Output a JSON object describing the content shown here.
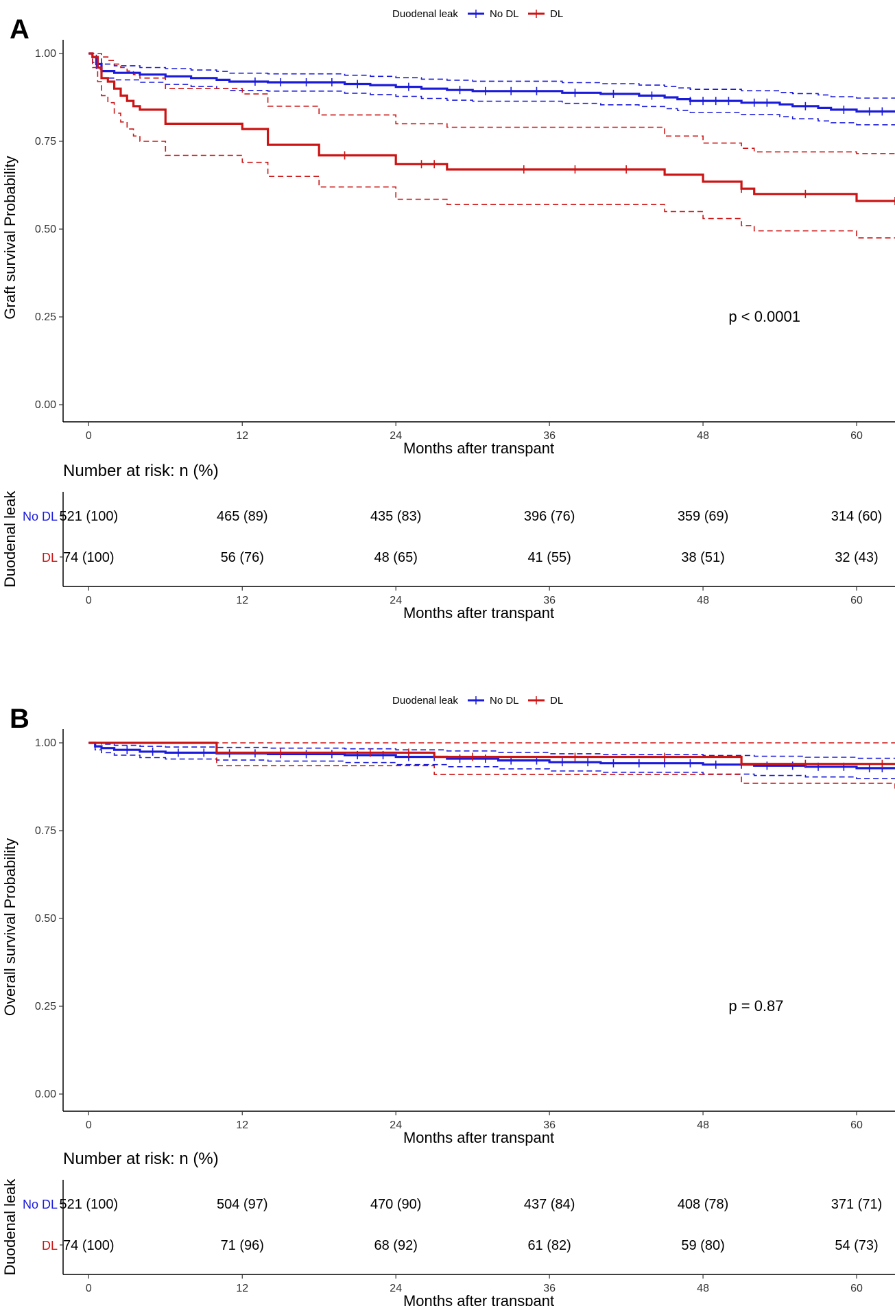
{
  "colors": {
    "no_dl": "#1a1adb",
    "dl": "#cc1414",
    "axis": "#000000"
  },
  "chart_data": [
    {
      "type": "line",
      "subtype": "kaplan-meier",
      "panel_label": "A",
      "legend": {
        "title": "Duodenal leak",
        "entries": [
          "No DL",
          "DL"
        ],
        "placement": "top-center"
      },
      "ylabel": "Graft survival Probability",
      "xlabel": "Months after transpant",
      "ylim": [
        0,
        1
      ],
      "xlim": [
        -2,
        63
      ],
      "yticks": [
        "0.00",
        "0.25",
        "0.50",
        "0.75",
        "1.00"
      ],
      "xticks": [
        "0",
        "12",
        "24",
        "36",
        "48",
        "60"
      ],
      "grid": false,
      "annotation": "p < 0.0001",
      "annotation_pos": {
        "x": 50,
        "y": 0.25
      },
      "series": [
        {
          "name": "No DL",
          "color": "#1a1adb",
          "x": [
            0,
            0.3,
            0.6,
            1.0,
            2.0,
            4.0,
            6.0,
            8.0,
            10.0,
            11.0,
            14.0,
            20.0,
            22.0,
            24.0,
            26.0,
            28.0,
            30.0,
            37.0,
            40.0,
            43.0,
            45.0,
            46.0,
            47.0,
            51.0,
            54.0,
            55.0,
            57.0,
            58.0,
            60.0,
            63.0
          ],
          "y": [
            1.0,
            0.99,
            0.97,
            0.95,
            0.945,
            0.94,
            0.935,
            0.93,
            0.925,
            0.92,
            0.918,
            0.913,
            0.91,
            0.905,
            0.9,
            0.896,
            0.893,
            0.888,
            0.885,
            0.88,
            0.875,
            0.87,
            0.865,
            0.86,
            0.855,
            0.85,
            0.845,
            0.84,
            0.835,
            0.835
          ],
          "ci_lower": [
            1.0,
            0.975,
            0.955,
            0.93,
            0.925,
            0.918,
            0.912,
            0.906,
            0.9,
            0.895,
            0.893,
            0.887,
            0.883,
            0.878,
            0.872,
            0.867,
            0.864,
            0.858,
            0.854,
            0.849,
            0.843,
            0.838,
            0.832,
            0.826,
            0.82,
            0.814,
            0.808,
            0.803,
            0.797,
            0.797
          ],
          "ci_upper": [
            1.0,
            1.0,
            0.985,
            0.97,
            0.965,
            0.96,
            0.957,
            0.953,
            0.949,
            0.944,
            0.942,
            0.938,
            0.935,
            0.931,
            0.927,
            0.924,
            0.921,
            0.917,
            0.914,
            0.91,
            0.906,
            0.902,
            0.898,
            0.894,
            0.889,
            0.886,
            0.882,
            0.877,
            0.873,
            0.873
          ],
          "censor_x": [
            13,
            15,
            17,
            19,
            21,
            25,
            29,
            31,
            33,
            35,
            38,
            41,
            44,
            47,
            48,
            49,
            50,
            52,
            53,
            56,
            59,
            61,
            62
          ]
        },
        {
          "name": "DL",
          "color": "#cc1414",
          "x": [
            0,
            0.3,
            0.7,
            1.0,
            1.5,
            2.0,
            2.5,
            3.0,
            3.5,
            4.0,
            6.0,
            12.0,
            14.0,
            18.0,
            24.0,
            28.0,
            45.0,
            48.0,
            51.0,
            52.0,
            60.0,
            63.0
          ],
          "y": [
            1.0,
            0.99,
            0.96,
            0.93,
            0.92,
            0.9,
            0.88,
            0.865,
            0.85,
            0.84,
            0.8,
            0.785,
            0.74,
            0.71,
            0.685,
            0.67,
            0.655,
            0.635,
            0.615,
            0.6,
            0.58,
            0.58
          ],
          "ci_lower": [
            1.0,
            0.96,
            0.92,
            0.88,
            0.86,
            0.83,
            0.805,
            0.785,
            0.765,
            0.75,
            0.71,
            0.69,
            0.65,
            0.62,
            0.585,
            0.57,
            0.55,
            0.53,
            0.51,
            0.495,
            0.475,
            0.475
          ],
          "ci_upper": [
            1.0,
            1.0,
            1.0,
            0.99,
            0.98,
            0.97,
            0.96,
            0.95,
            0.94,
            0.93,
            0.9,
            0.885,
            0.85,
            0.825,
            0.8,
            0.79,
            0.765,
            0.745,
            0.73,
            0.72,
            0.715,
            0.715
          ],
          "censor_x": [
            20,
            26,
            27,
            34,
            38,
            42,
            51,
            56,
            63
          ]
        }
      ],
      "risk_table": {
        "title": "Number at risk: n (%)",
        "strata_title": "Duodenal leak",
        "times": [
          0,
          12,
          24,
          36,
          48,
          60
        ],
        "rows": [
          {
            "name": "No DL",
            "values": [
              "521 (100)",
              "465 (89)",
              "435 (83)",
              "396 (76)",
              "359 (69)",
              "314 (60)"
            ]
          },
          {
            "name": "DL",
            "values": [
              "74 (100)",
              "56 (76)",
              "48 (65)",
              "41 (55)",
              "38 (51)",
              "32 (43)"
            ]
          }
        ],
        "xlabel": "Months after transpant"
      }
    },
    {
      "type": "line",
      "subtype": "kaplan-meier",
      "panel_label": "B",
      "legend": {
        "title": "Duodenal leak",
        "entries": [
          "No DL",
          "DL"
        ],
        "placement": "top-center"
      },
      "ylabel": "Overall survival Probability",
      "xlabel": "Months after transpant",
      "ylim": [
        0,
        1
      ],
      "xlim": [
        -2,
        63
      ],
      "yticks": [
        "0.00",
        "0.25",
        "0.50",
        "0.75",
        "1.00"
      ],
      "xticks": [
        "0",
        "12",
        "24",
        "36",
        "48",
        "60"
      ],
      "grid": false,
      "annotation": "p = 0.87",
      "annotation_pos": {
        "x": 50,
        "y": 0.25
      },
      "series": [
        {
          "name": "No DL",
          "color": "#1a1adb",
          "x": [
            0,
            0.5,
            1.0,
            2.0,
            4.0,
            6.0,
            10.0,
            14.0,
            20.0,
            24.0,
            28.0,
            32.0,
            36.0,
            40.0,
            48.0,
            52.0,
            56.0,
            60.0,
            63.0
          ],
          "y": [
            1.0,
            0.99,
            0.985,
            0.98,
            0.975,
            0.972,
            0.97,
            0.968,
            0.965,
            0.96,
            0.955,
            0.95,
            0.945,
            0.942,
            0.938,
            0.935,
            0.932,
            0.928,
            0.928
          ],
          "ci_lower": [
            1.0,
            0.98,
            0.972,
            0.965,
            0.958,
            0.954,
            0.951,
            0.948,
            0.944,
            0.938,
            0.932,
            0.926,
            0.92,
            0.916,
            0.911,
            0.907,
            0.903,
            0.898,
            0.898
          ],
          "ci_upper": [
            1.0,
            1.0,
            0.996,
            0.993,
            0.99,
            0.988,
            0.987,
            0.985,
            0.983,
            0.98,
            0.977,
            0.973,
            0.969,
            0.967,
            0.964,
            0.962,
            0.959,
            0.956,
            0.956
          ],
          "censor_x": [
            3,
            5,
            7,
            9,
            11,
            13,
            15,
            17,
            19,
            21,
            23,
            25,
            27,
            29,
            31,
            33,
            35,
            37,
            39,
            41,
            43,
            45,
            47,
            49,
            51,
            53,
            55,
            57,
            59,
            61,
            62
          ]
        },
        {
          "name": "DL",
          "color": "#cc1414",
          "x": [
            0,
            10.0,
            27.0,
            51.0,
            63.0
          ],
          "y": [
            1.0,
            0.972,
            0.96,
            0.94,
            0.94
          ],
          "ci_lower": [
            1.0,
            0.935,
            0.91,
            0.885,
            0.87
          ],
          "ci_upper": [
            1.0,
            1.0,
            1.0,
            1.0,
            1.0
          ],
          "censor_x": [
            15,
            22,
            25,
            30,
            38,
            45,
            56,
            62
          ]
        }
      ],
      "risk_table": {
        "title": "Number at risk: n (%)",
        "strata_title": "Duodenal leak",
        "times": [
          0,
          12,
          24,
          36,
          48,
          60
        ],
        "rows": [
          {
            "name": "No DL",
            "values": [
              "521 (100)",
              "504 (97)",
              "470 (90)",
              "437 (84)",
              "408 (78)",
              "371 (71)"
            ]
          },
          {
            "name": "DL",
            "values": [
              "74 (100)",
              "71 (96)",
              "68 (92)",
              "61 (82)",
              "59 (80)",
              "54 (73)"
            ]
          }
        ],
        "xlabel": "Months after transpant"
      }
    }
  ]
}
